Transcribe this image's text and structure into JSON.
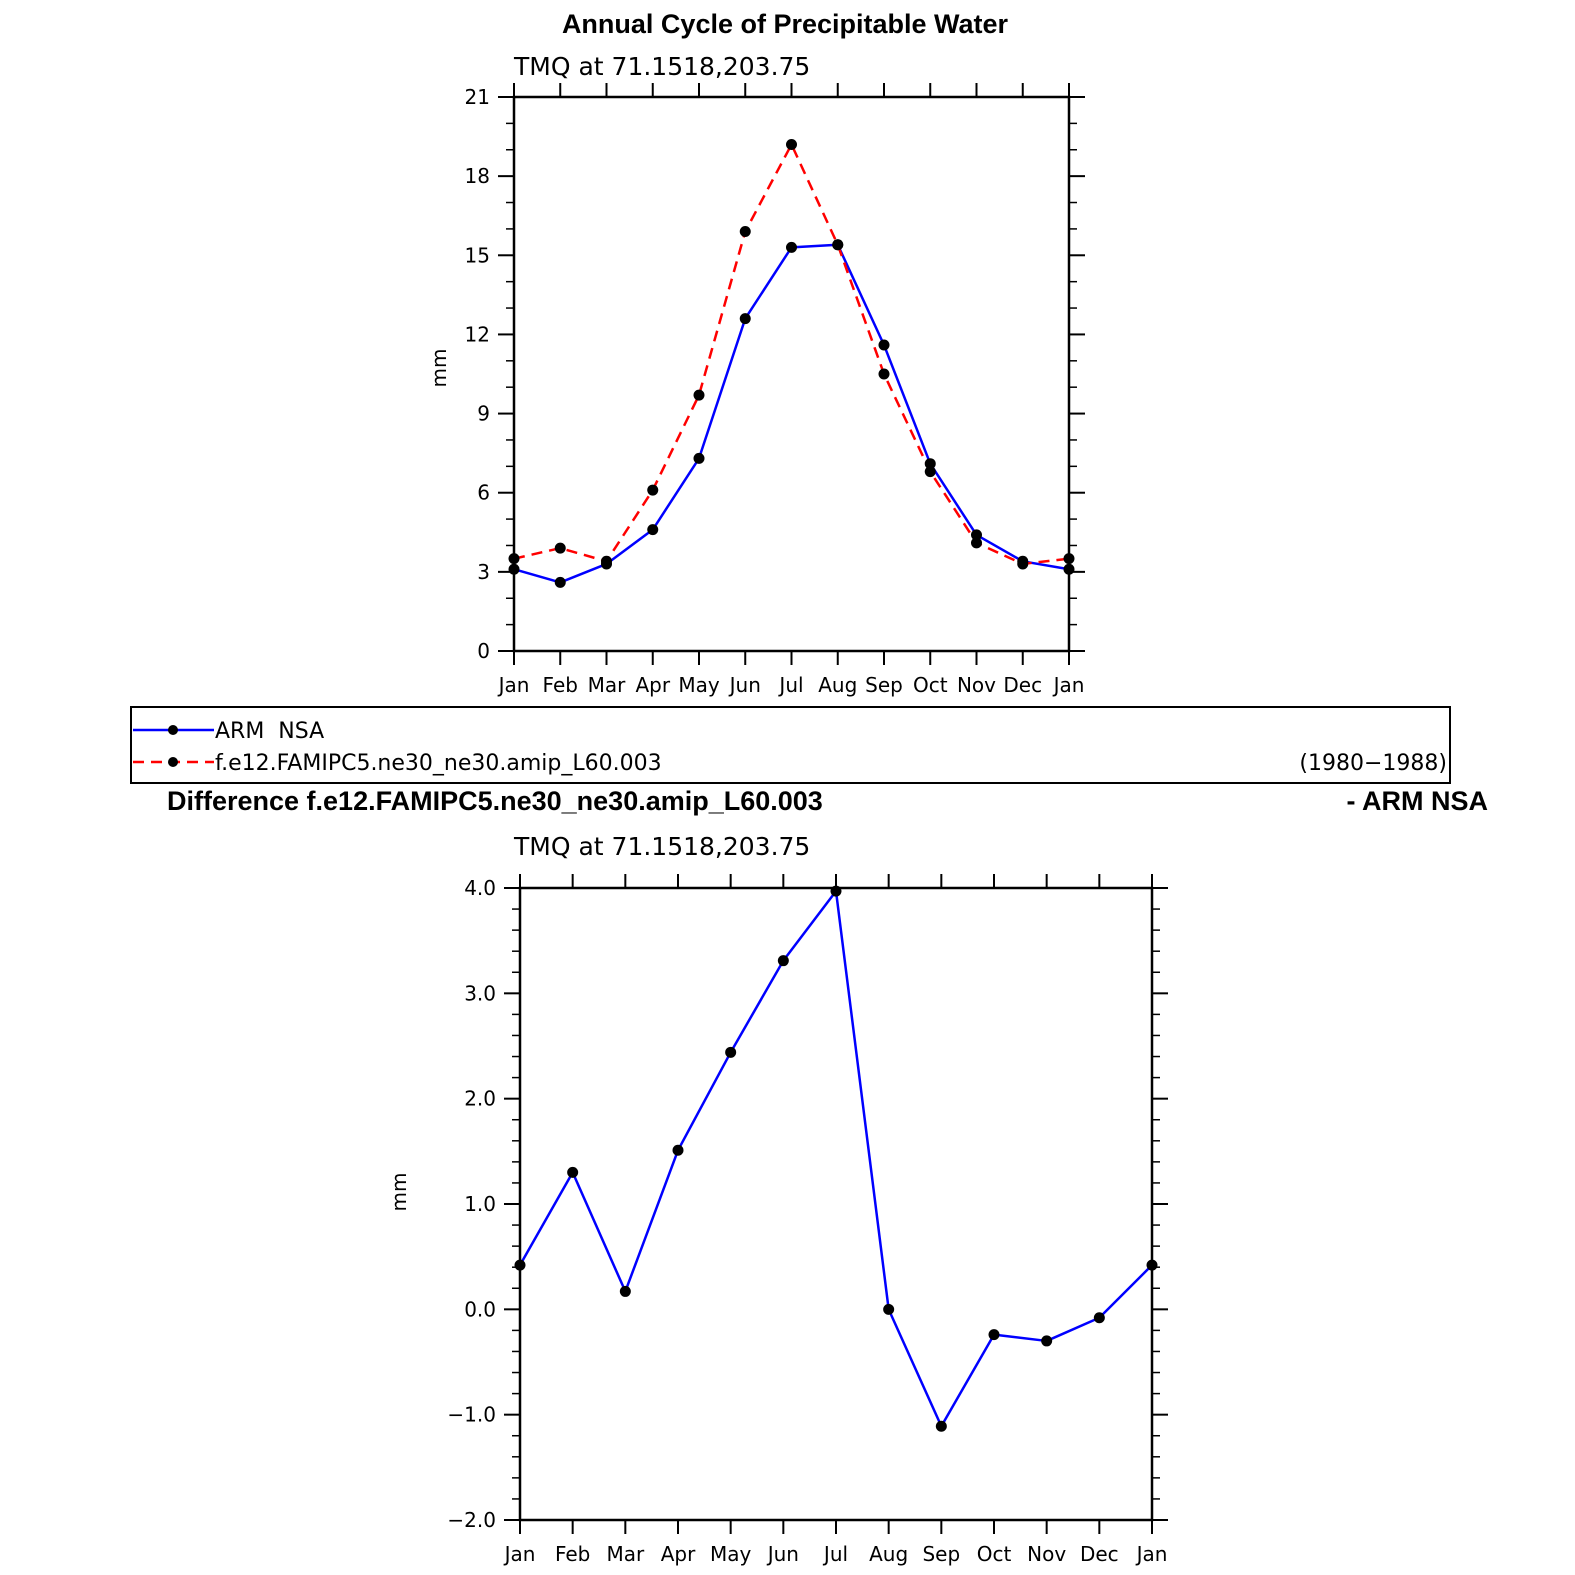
{
  "chart_data": [
    {
      "type": "line",
      "title": "Annual Cycle of Precipitable Water",
      "subtitle": "TMQ  at  71.1518,203.75",
      "xlabel": "",
      "ylabel": "mm",
      "categories": [
        "Jan",
        "Feb",
        "Mar",
        "Apr",
        "May",
        "Jun",
        "Jul",
        "Aug",
        "Sep",
        "Oct",
        "Nov",
        "Dec",
        "Jan"
      ],
      "ylim": [
        0,
        21
      ],
      "yticks": [
        0,
        3,
        6,
        9,
        12,
        15,
        18,
        21
      ],
      "ytick_labels": [
        "0",
        "3",
        "6",
        "9",
        "12",
        "15",
        "18",
        "21"
      ],
      "grid": false,
      "series": [
        {
          "name": "ARM  NSA",
          "color": "#0000ff",
          "dash": "solid",
          "values": [
            3.1,
            2.6,
            3.3,
            4.6,
            7.3,
            12.6,
            15.3,
            15.4,
            11.6,
            7.1,
            4.4,
            3.4,
            3.1
          ]
        },
        {
          "name": "f.e12.FAMIPC5.ne30_ne30.amip_L60.003",
          "color": "#ff0000",
          "dash": "dashed",
          "values": [
            3.5,
            3.9,
            3.4,
            6.1,
            9.7,
            15.9,
            19.2,
            15.4,
            10.5,
            6.8,
            4.1,
            3.3,
            3.5
          ]
        }
      ],
      "legend": {
        "position": "bottom",
        "period": "(1980−1988)"
      }
    },
    {
      "type": "line",
      "title_left": "Difference f.e12.FAMIPC5.ne30_ne30.amip_L60.003",
      "title_right": "- ARM NSA",
      "subtitle": "TMQ  at  71.1518,203.75",
      "xlabel": "",
      "ylabel": "mm",
      "categories": [
        "Jan",
        "Feb",
        "Mar",
        "Apr",
        "May",
        "Jun",
        "Jul",
        "Aug",
        "Sep",
        "Oct",
        "Nov",
        "Dec",
        "Jan"
      ],
      "ylim": [
        -2.0,
        4.0
      ],
      "yticks": [
        -2.0,
        -1.0,
        0.0,
        1.0,
        2.0,
        3.0,
        4.0
      ],
      "ytick_labels": [
        "−2.0",
        "−1.0",
        "0.0",
        "1.0",
        "2.0",
        "3.0",
        "4.0"
      ],
      "grid": false,
      "series": [
        {
          "color": "#0000ff",
          "dash": "solid",
          "values": [
            0.42,
            1.3,
            0.17,
            1.51,
            2.44,
            3.31,
            3.97,
            0.0,
            -1.11,
            -0.24,
            -0.3,
            -0.08,
            0.42
          ]
        }
      ]
    }
  ]
}
